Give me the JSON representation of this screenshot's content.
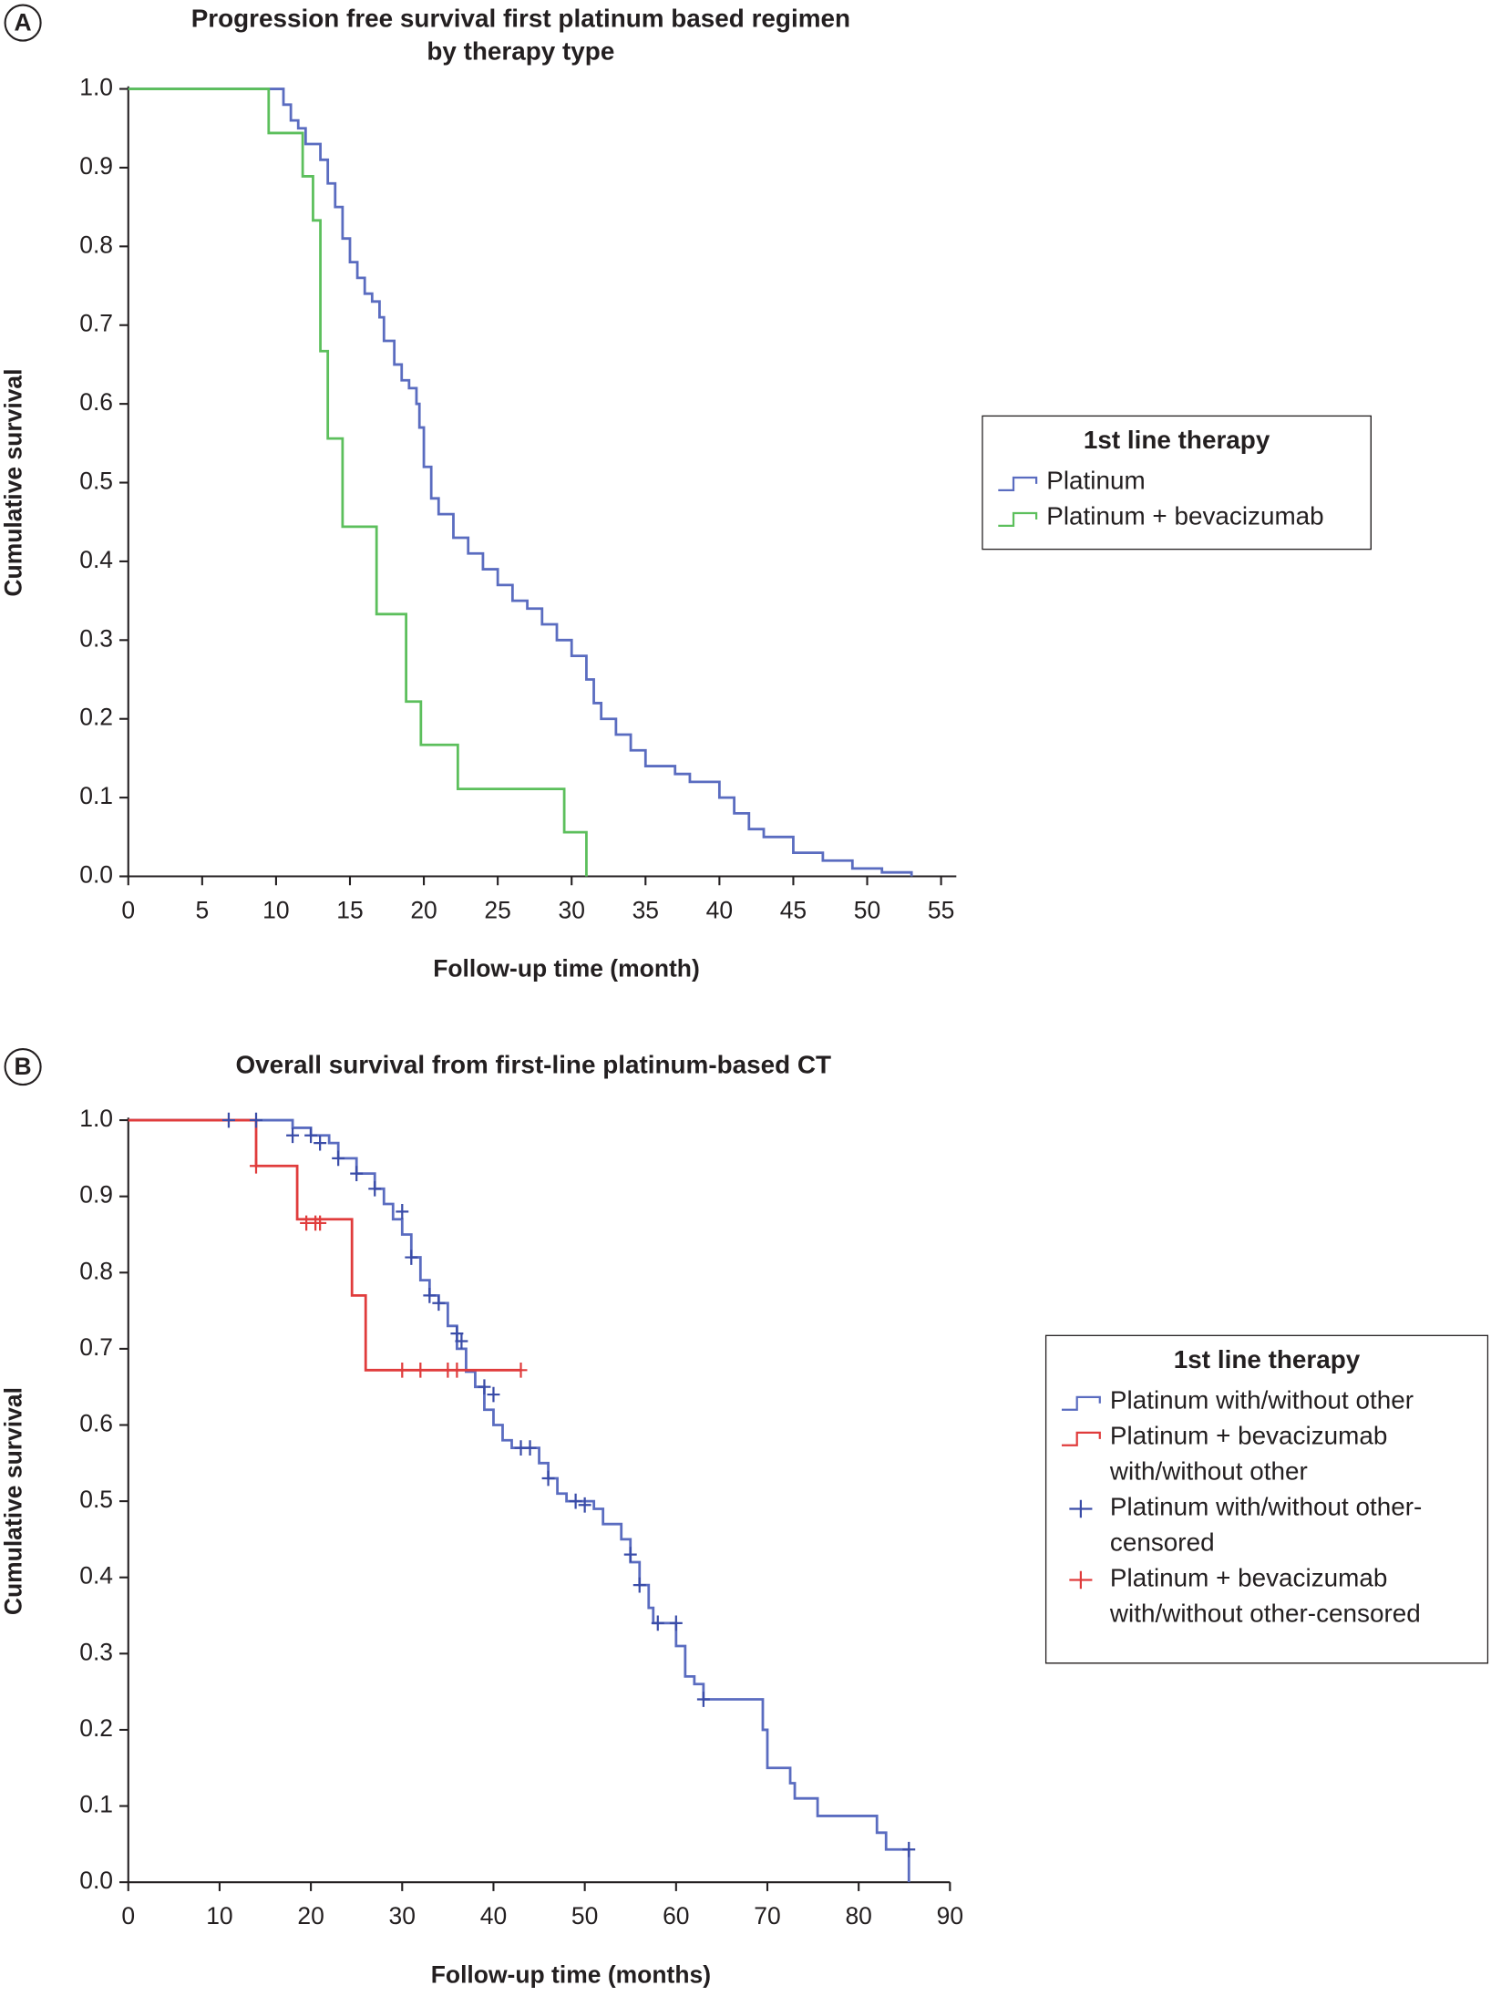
{
  "chart_data": [
    {
      "type": "line",
      "step": true,
      "panel_label": "A",
      "title": "Progression free survival first platinum based regimen by therapy type",
      "x_label": "Follow-up time (month)",
      "y_label": "Cumulative survival",
      "legend_title": "1st line therapy",
      "legend": "right",
      "xlim": [
        0,
        55
      ],
      "xticks": [
        0,
        5,
        10,
        15,
        20,
        25,
        30,
        35,
        40,
        45,
        50,
        55
      ],
      "ylim": [
        0,
        1
      ],
      "yticks": [
        {
          "value": 0,
          "label": "0.0"
        },
        {
          "value": 0.1,
          "label": "0.1"
        },
        {
          "value": 0.2,
          "label": "0.2"
        },
        {
          "value": 0.3,
          "label": "0.3"
        },
        {
          "value": 0.4,
          "label": "0.4"
        },
        {
          "value": 0.5,
          "label": "0.5"
        },
        {
          "value": 0.6,
          "label": "0.6"
        },
        {
          "value": 0.7,
          "label": "0.7"
        },
        {
          "value": 0.8,
          "label": "0.8"
        },
        {
          "value": 0.9,
          "label": "0.9"
        },
        {
          "value": 1,
          "label": "1.0"
        }
      ],
      "series": [
        {
          "name": "Platinum",
          "color": "#5a6cc0",
          "marker": "step",
          "x": [
            0,
            9.8,
            10.5,
            11,
            11.5,
            12,
            13,
            13.5,
            14,
            14.5,
            15,
            15.5,
            16,
            16.5,
            17,
            17.3,
            18,
            18.5,
            19,
            19.5,
            19.7,
            20,
            20.5,
            21,
            22,
            23,
            24,
            25,
            26,
            27,
            28,
            29,
            30,
            31,
            31.5,
            32,
            33,
            34,
            35,
            37,
            38,
            40,
            41,
            42,
            43,
            45,
            47,
            49,
            51,
            53
          ],
          "values": [
            1,
            1,
            0.98,
            0.96,
            0.95,
            0.93,
            0.91,
            0.88,
            0.85,
            0.81,
            0.78,
            0.76,
            0.74,
            0.73,
            0.71,
            0.68,
            0.65,
            0.63,
            0.62,
            0.6,
            0.57,
            0.52,
            0.48,
            0.46,
            0.43,
            0.41,
            0.39,
            0.37,
            0.35,
            0.34,
            0.32,
            0.3,
            0.28,
            0.25,
            0.22,
            0.2,
            0.18,
            0.16,
            0.14,
            0.13,
            0.12,
            0.1,
            0.08,
            0.06,
            0.05,
            0.03,
            0.02,
            0.01,
            0.005,
            0
          ]
        },
        {
          "name": "Platinum + bevacizumab",
          "color": "#5cbf5c",
          "marker": "step",
          "x": [
            0,
            9.5,
            11.8,
            12.5,
            13,
            13.5,
            14.5,
            16.8,
            18.8,
            19.8,
            22.3,
            29.5,
            31
          ],
          "values": [
            1,
            0.944,
            0.889,
            0.833,
            0.667,
            0.556,
            0.444,
            0.333,
            0.222,
            0.167,
            0.111,
            0.056,
            0
          ]
        }
      ]
    },
    {
      "type": "line",
      "step": true,
      "panel_label": "B",
      "title": "Overall survival from first-line platinum-based CT",
      "x_label": "Follow-up time (months)",
      "y_label": "Cumulative survival",
      "legend_title": "1st line therapy",
      "legend": "right",
      "xlim": [
        0,
        90
      ],
      "xticks": [
        0,
        10,
        20,
        30,
        40,
        50,
        60,
        70,
        80,
        90
      ],
      "ylim": [
        0,
        1
      ],
      "yticks": [
        {
          "value": 0,
          "label": "0.0"
        },
        {
          "value": 0.1,
          "label": "0.1"
        },
        {
          "value": 0.2,
          "label": "0.2"
        },
        {
          "value": 0.3,
          "label": "0.3"
        },
        {
          "value": 0.4,
          "label": "0.4"
        },
        {
          "value": 0.5,
          "label": "0.5"
        },
        {
          "value": 0.6,
          "label": "0.6"
        },
        {
          "value": 0.7,
          "label": "0.7"
        },
        {
          "value": 0.8,
          "label": "0.8"
        },
        {
          "value": 0.9,
          "label": "0.9"
        },
        {
          "value": 1,
          "label": "1.0"
        }
      ],
      "series": [
        {
          "name": "Platinum with/without other",
          "color": "#5a6cc0",
          "marker": "step",
          "x": [
            0,
            14,
            18,
            20,
            22,
            23,
            25,
            27,
            28,
            29,
            30,
            31,
            32,
            33,
            34,
            35,
            36,
            37,
            38,
            39,
            40,
            41,
            42,
            45,
            46,
            47,
            48,
            51,
            52,
            54,
            55,
            56,
            57,
            57.5,
            60,
            61,
            62,
            63,
            69.5,
            70,
            72.5,
            73,
            75.5,
            82,
            83,
            85.5
          ],
          "values": [
            1,
            1,
            0.99,
            0.98,
            0.97,
            0.95,
            0.93,
            0.91,
            0.89,
            0.87,
            0.85,
            0.82,
            0.79,
            0.77,
            0.76,
            0.73,
            0.7,
            0.67,
            0.65,
            0.62,
            0.6,
            0.58,
            0.57,
            0.55,
            0.53,
            0.51,
            0.5,
            0.49,
            0.47,
            0.45,
            0.42,
            0.39,
            0.36,
            0.34,
            0.31,
            0.27,
            0.26,
            0.24,
            0.2,
            0.15,
            0.13,
            0.11,
            0.087,
            0.065,
            0.043,
            0
          ]
        },
        {
          "name": "Platinum + bevacizumab with/without other",
          "color": "#e03c3c",
          "marker": "step",
          "x": [
            0,
            14,
            18.5,
            24.5,
            26,
            43
          ],
          "values": [
            1,
            0.94,
            0.87,
            0.77,
            0.672,
            0.672
          ]
        },
        {
          "name": "Platinum with/without other-censored",
          "color": "#3a4ca8",
          "marker": "plus",
          "x": [
            11,
            14,
            18,
            20,
            21,
            23,
            25,
            27,
            30,
            31,
            33,
            34,
            36,
            36.5,
            39,
            40,
            43,
            44,
            46,
            49,
            50,
            55,
            56,
            58,
            60,
            63,
            85.5
          ],
          "values": [
            1,
            1,
            0.98,
            0.98,
            0.97,
            0.95,
            0.93,
            0.91,
            0.88,
            0.82,
            0.77,
            0.76,
            0.72,
            0.71,
            0.65,
            0.64,
            0.57,
            0.57,
            0.53,
            0.5,
            0.495,
            0.43,
            0.39,
            0.34,
            0.34,
            0.24,
            0.043
          ]
        },
        {
          "name": "Platinum + bevacizumab with/without other-censored",
          "color": "#e03c3c",
          "marker": "plus",
          "x": [
            14,
            19.5,
            20.5,
            21,
            30,
            32,
            35,
            36,
            43
          ],
          "values": [
            0.94,
            0.865,
            0.865,
            0.865,
            0.672,
            0.672,
            0.672,
            0.672,
            0.672
          ]
        }
      ]
    }
  ]
}
